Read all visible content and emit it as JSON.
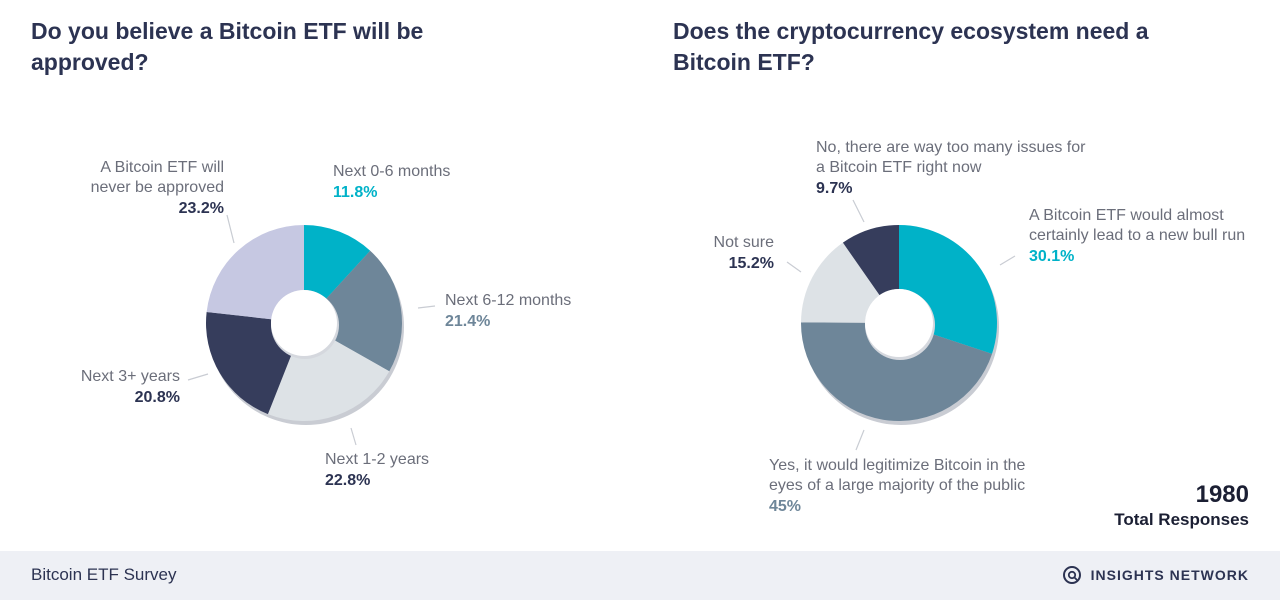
{
  "colors": {
    "teal": "#00b2c8",
    "slate": "#6e8699",
    "light_gray": "#dde2e6",
    "navy": "#363d5c",
    "lavender": "#c6c8e2",
    "title": "#2c3352",
    "label_gray": "#6b6e7a",
    "footer_bg": "#eef0f5"
  },
  "chart_data": [
    {
      "type": "pie",
      "donut": true,
      "title": "Do you believe a Bitcoin ETF will be approved?",
      "unit": "%",
      "slices": [
        {
          "label": "Next 0-6 months",
          "value": 11.8,
          "display": "11.8%",
          "color": "#00b2c8"
        },
        {
          "label": "Next 6-12 months",
          "value": 21.4,
          "display": "21.4%",
          "color": "#6e8699"
        },
        {
          "label": "Next 1-2 years",
          "value": 22.8,
          "display": "22.8%",
          "color": "#dde2e6"
        },
        {
          "label": "Next 3+ years",
          "value": 20.8,
          "display": "20.8%",
          "color": "#363d5c"
        },
        {
          "label": "A Bitcoin ETF will never be approved",
          "value": 23.2,
          "display": "23.2%",
          "color": "#c6c8e2"
        }
      ]
    },
    {
      "type": "pie",
      "donut": true,
      "title": "Does the cryptocurrency ecosystem need a Bitcoin ETF?",
      "unit": "%",
      "slices": [
        {
          "label": "A Bitcoin ETF would almost certainly lead to a new bull run",
          "value": 30.1,
          "display": "30.1%",
          "color": "#00b2c8"
        },
        {
          "label": "Yes, it would legitimize Bitcoin in the eyes of a large majority of the public",
          "value": 45,
          "display": "45%",
          "color": "#6e8699"
        },
        {
          "label": "Not sure",
          "value": 15.2,
          "display": "15.2%",
          "color": "#dde2e6"
        },
        {
          "label": "No, there are way too many issues for a Bitcoin ETF right now",
          "value": 9.7,
          "display": "9.7%",
          "color": "#363d5c"
        }
      ]
    }
  ],
  "total": {
    "count": "1980",
    "caption": "Total Responses"
  },
  "footer": {
    "source": "Bitcoin ETF Survey",
    "brand": "INSIGHTS NETWORK",
    "brand_icon": "insights-network-logo-icon"
  }
}
